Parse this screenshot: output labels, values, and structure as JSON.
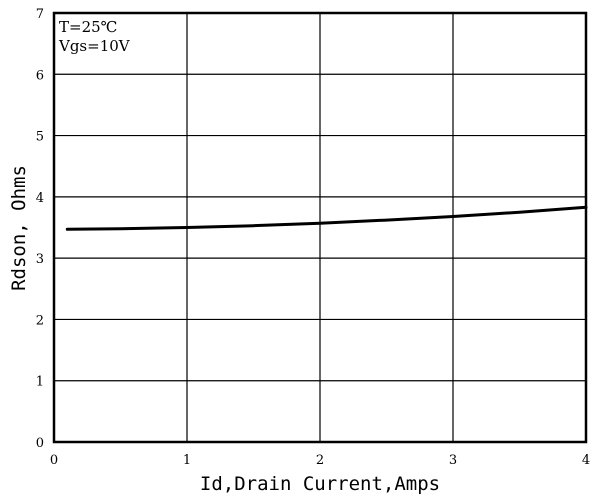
{
  "chart_data": {
    "type": "line",
    "title": "",
    "xlabel": "Id,Drain Current,Amps",
    "ylabel": "Rdson, Ohms",
    "xlim": [
      0,
      4
    ],
    "ylim": [
      0,
      7
    ],
    "xticks": [
      "0",
      "1",
      "2",
      "3",
      "4"
    ],
    "yticks": [
      "0",
      "1",
      "2",
      "3",
      "4",
      "5",
      "6",
      "7"
    ],
    "grid": true,
    "annotations": [
      "T=25℃",
      "Vgs=10V"
    ],
    "series": [
      {
        "x": [
          0.1,
          0.5,
          1.0,
          1.5,
          2.0,
          2.5,
          3.0,
          3.5,
          4.0
        ],
        "y": [
          3.47,
          3.48,
          3.5,
          3.53,
          3.57,
          3.62,
          3.68,
          3.75,
          3.83
        ],
        "color": "#000000"
      }
    ]
  }
}
